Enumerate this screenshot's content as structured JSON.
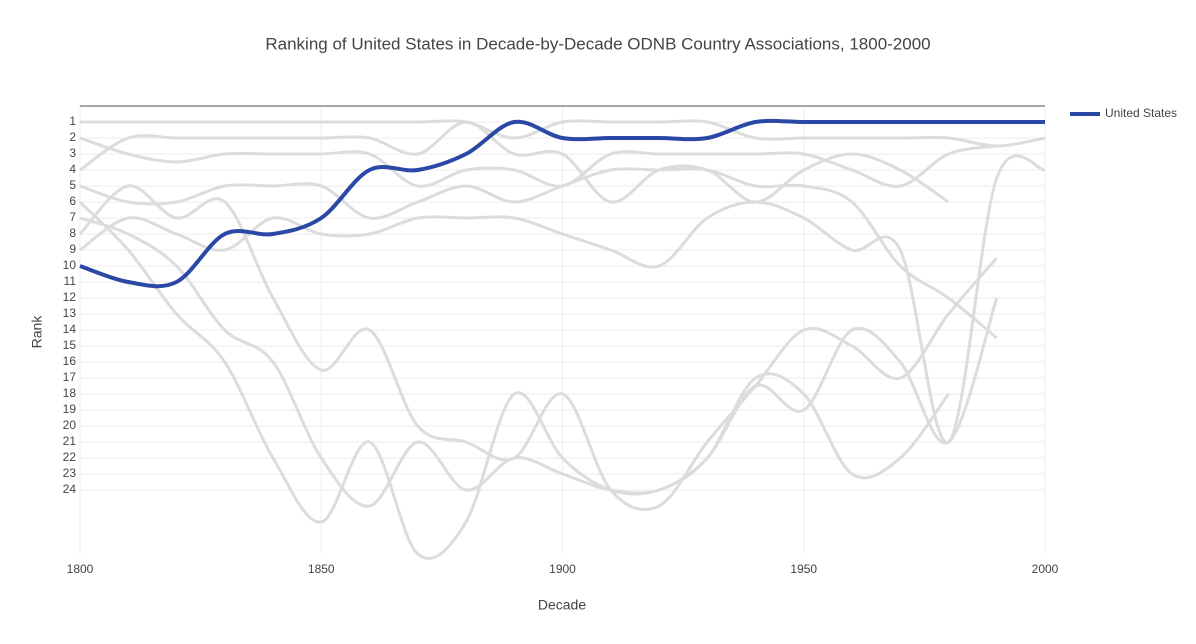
{
  "chart_data": {
    "type": "line",
    "title": "Ranking of United States in Decade-by-Decade ODNB Country Associations, 1800-2000",
    "xlabel": "Decade",
    "ylabel": "Rank",
    "x": [
      1800,
      1810,
      1820,
      1830,
      1840,
      1850,
      1860,
      1870,
      1880,
      1890,
      1900,
      1910,
      1920,
      1930,
      1940,
      1950,
      1960,
      1970,
      1980,
      1990,
      2000
    ],
    "xlim": [
      1800,
      2000
    ],
    "xticks": [
      1800,
      1850,
      1900,
      1950,
      2000
    ],
    "ylim": [
      28,
      0
    ],
    "yticks": [
      1,
      2,
      3,
      4,
      5,
      6,
      7,
      8,
      9,
      10,
      11,
      12,
      13,
      14,
      15,
      16,
      17,
      18,
      19,
      20,
      21,
      22,
      23,
      24
    ],
    "grid": true,
    "legend": "top-right",
    "series": [
      {
        "color": "#dcdcdc",
        "values": [
          1,
          1,
          1,
          1,
          1,
          1,
          1,
          1,
          1,
          2,
          1,
          1,
          1,
          1,
          2,
          2,
          2,
          2,
          2,
          2.5,
          2
        ]
      },
      {
        "color": "#dcdcdc",
        "values": [
          2,
          3,
          3.5,
          3,
          3,
          3,
          3,
          5,
          4,
          4,
          5,
          3,
          3,
          3,
          3,
          3,
          4,
          5,
          3,
          2.5,
          null
        ]
      },
      {
        "color": "#dcdcdc",
        "values": [
          4,
          2,
          2,
          2,
          2,
          2,
          2,
          3,
          1,
          3,
          3,
          6,
          4,
          4,
          6,
          4,
          3,
          4,
          6,
          null,
          null
        ]
      },
      {
        "color": "#dcdcdc",
        "values": [
          5,
          6,
          6,
          5,
          5,
          5,
          7,
          6,
          5,
          6,
          5,
          4,
          4,
          4,
          5,
          5,
          6,
          10,
          12,
          14.5,
          null
        ]
      },
      {
        "color": "#dcdcdc",
        "values": [
          6,
          9,
          13,
          16,
          22,
          26,
          21,
          28,
          26,
          18,
          22,
          24,
          24,
          22,
          17,
          18,
          23,
          22,
          18,
          null,
          null
        ]
      },
      {
        "color": "#dcdcdc",
        "values": [
          9,
          7,
          8,
          9,
          7,
          8,
          8,
          7,
          7,
          7,
          8,
          9,
          10,
          7,
          6,
          7,
          9,
          9,
          21,
          4.5,
          4
        ]
      },
      {
        "color": "#dcdcdc",
        "values": [
          8,
          5,
          7,
          6,
          12,
          16.5,
          14,
          20,
          21,
          22,
          18,
          24,
          25,
          21,
          17.5,
          14,
          15,
          17,
          13,
          9.5,
          null
        ]
      },
      {
        "color": "#dcdcdc",
        "values": [
          7,
          8,
          10,
          14,
          16,
          22,
          25,
          21,
          24,
          22,
          23,
          24,
          24,
          22,
          17.5,
          19,
          14,
          16,
          21,
          12,
          null
        ]
      },
      {
        "name": "United States",
        "color": "#2a48a6",
        "values": [
          10,
          11,
          11,
          8,
          8,
          7,
          4,
          4,
          3,
          1,
          2,
          2,
          2,
          2,
          1,
          1,
          1,
          1,
          1,
          1,
          1
        ]
      }
    ]
  }
}
